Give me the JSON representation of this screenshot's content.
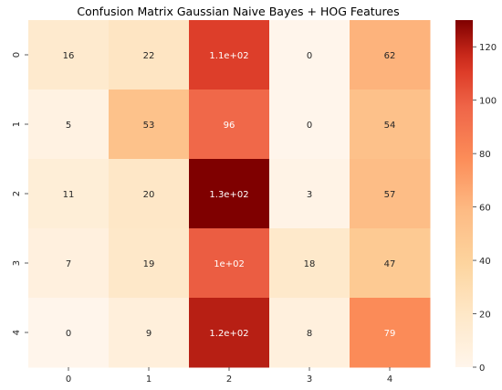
{
  "chart_data": {
    "type": "heatmap",
    "title": "Confusion Matrix Gaussian Naive Bayes + HOG Features",
    "xlabel": "",
    "ylabel": "",
    "x_categories": [
      "0",
      "1",
      "2",
      "3",
      "4"
    ],
    "y_categories": [
      "0",
      "1",
      "2",
      "3",
      "4"
    ],
    "values": [
      [
        16,
        22,
        110,
        0,
        62
      ],
      [
        5,
        53,
        96,
        0,
        54
      ],
      [
        11,
        20,
        130,
        3,
        57
      ],
      [
        7,
        19,
        100,
        18,
        47
      ],
      [
        0,
        9,
        120,
        8,
        79
      ]
    ],
    "annotations": [
      [
        "16",
        "22",
        "1.1e+02",
        "0",
        "62"
      ],
      [
        "5",
        "53",
        "96",
        "0",
        "54"
      ],
      [
        "11",
        "20",
        "1.3e+02",
        "3",
        "57"
      ],
      [
        "7",
        "19",
        "1e+02",
        "18",
        "47"
      ],
      [
        "0",
        "9",
        "1.2e+02",
        "8",
        "79"
      ]
    ],
    "colormap": "OrRd",
    "colorbar": {
      "range": [
        0,
        130
      ],
      "ticks": [
        0,
        20,
        40,
        60,
        80,
        100,
        120
      ],
      "placement": "right"
    }
  }
}
